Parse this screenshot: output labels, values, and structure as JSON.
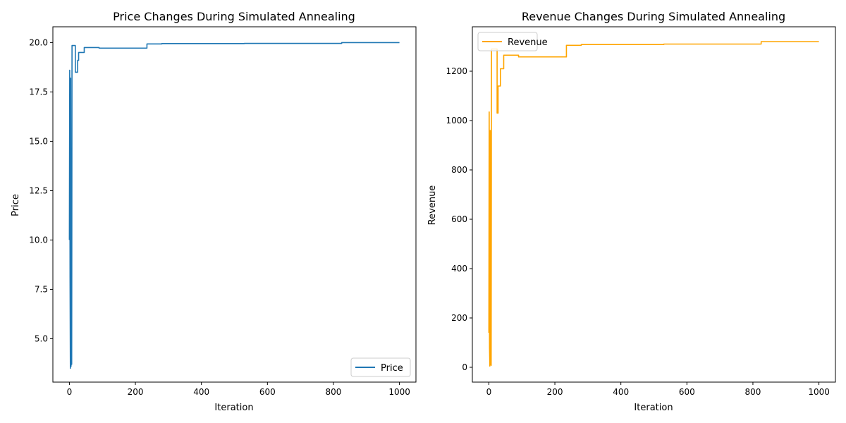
{
  "chart_data": [
    {
      "type": "line",
      "title": "Price Changes During Simulated Annealing",
      "xlabel": "Iteration",
      "ylabel": "Price",
      "xlim": [
        -50,
        1050
      ],
      "ylim": [
        2.8,
        20.8
      ],
      "xticks": [
        0,
        200,
        400,
        600,
        800,
        1000
      ],
      "xtick_labels": [
        "0",
        "200",
        "400",
        "600",
        "800",
        "1000"
      ],
      "yticks": [
        5.0,
        7.5,
        10.0,
        12.5,
        15.0,
        17.5,
        20.0
      ],
      "ytick_labels": [
        "5.0",
        "7.5",
        "10.0",
        "12.5",
        "15.0",
        "17.5",
        "20.0"
      ],
      "grid": false,
      "legend_position": "lower-right",
      "color": "#1f77b4",
      "series": [
        {
          "name": "Price",
          "x": [
            0,
            1,
            2,
            3,
            4,
            5,
            6,
            7,
            8,
            8,
            18,
            18,
            25,
            25,
            28,
            28,
            35,
            35,
            45,
            45,
            90,
            90,
            235,
            235,
            280,
            280,
            530,
            530,
            825,
            825,
            1000
          ],
          "y": [
            10.0,
            18.6,
            8.1,
            3.5,
            18.2,
            3.6,
            14.0,
            3.7,
            19.85,
            19.85,
            19.85,
            18.5,
            18.5,
            19.1,
            19.1,
            19.5,
            19.5,
            19.5,
            19.5,
            19.75,
            19.75,
            19.72,
            19.72,
            19.93,
            19.93,
            19.95,
            19.95,
            19.96,
            19.96,
            20.0,
            20.0
          ]
        }
      ]
    },
    {
      "type": "line",
      "title": "Revenue Changes During Simulated Annealing",
      "xlabel": "Iteration",
      "ylabel": "Revenue",
      "xlim": [
        -50,
        1050
      ],
      "ylim": [
        -60,
        1380
      ],
      "xticks": [
        0,
        200,
        400,
        600,
        800,
        1000
      ],
      "xtick_labels": [
        "0",
        "200",
        "400",
        "600",
        "800",
        "1000"
      ],
      "yticks": [
        0,
        200,
        400,
        600,
        800,
        1000,
        1200
      ],
      "ytick_labels": [
        "0",
        "200",
        "400",
        "600",
        "800",
        "1000",
        "1200"
      ],
      "grid": false,
      "legend_position": "upper-left",
      "color": "#ffa500",
      "series": [
        {
          "name": "Revenue",
          "x": [
            0,
            1,
            2,
            3,
            4,
            5,
            6,
            7,
            8,
            8,
            25,
            25,
            28,
            28,
            35,
            35,
            45,
            45,
            90,
            90,
            235,
            235,
            280,
            280,
            530,
            530,
            825,
            825,
            1000
          ],
          "y": [
            140,
            1035,
            80,
            5,
            960,
            10,
            700,
            8,
            1290,
            1290,
            1290,
            1030,
            1030,
            1140,
            1140,
            1210,
            1210,
            1265,
            1265,
            1258,
            1258,
            1305,
            1305,
            1308,
            1308,
            1310,
            1310,
            1320,
            1320
          ]
        }
      ]
    }
  ]
}
